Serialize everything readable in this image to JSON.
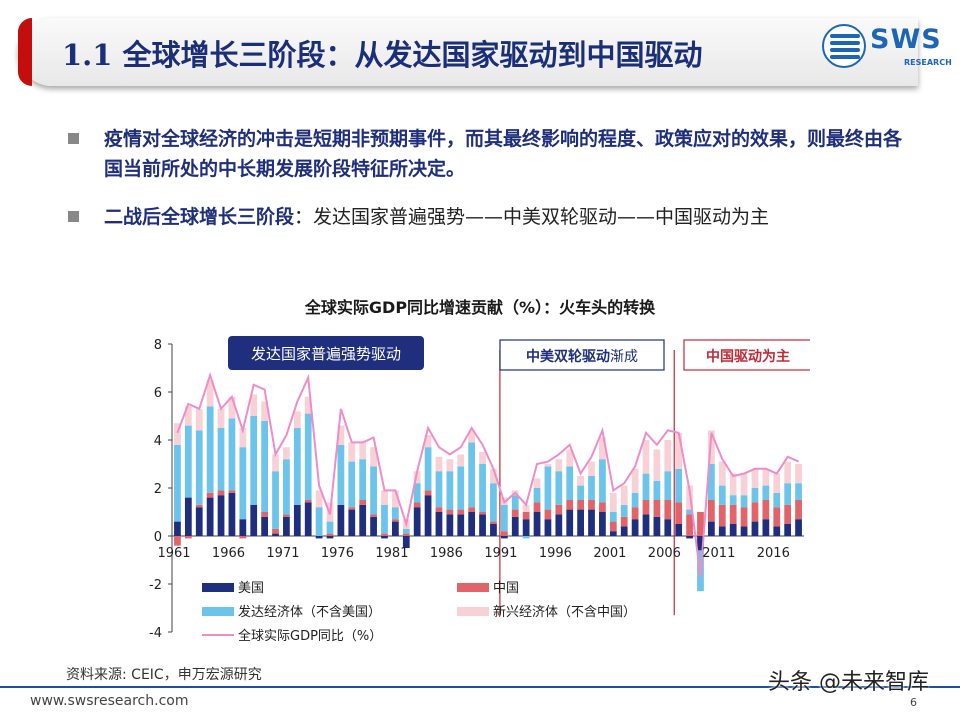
{
  "header": {
    "title": "1.1 全球增长三阶段：从发达国家驱动到中国驱动",
    "logo_text": "SWS",
    "logo_subtext": "RESEARCH"
  },
  "bullets": [
    {
      "bold": "疫情对全球经济的冲击是短期非预期事件，而其最终影响的程度、政策应对的效果，则最终由各国当前所处的中长期发展阶段特征所决定。",
      "rest": ""
    },
    {
      "bold": "二战后全球增长三阶段",
      "rest": "：发达国家普遍强势——中美双轮驱动——中国驱动为主"
    }
  ],
  "chart_data": {
    "type": "bar",
    "title": "全球实际GDP同比增速贡献（%）：火车头的转换",
    "stacked": true,
    "x": [
      1961,
      1962,
      1963,
      1964,
      1965,
      1966,
      1967,
      1968,
      1969,
      1970,
      1971,
      1972,
      1973,
      1974,
      1975,
      1976,
      1977,
      1978,
      1979,
      1980,
      1981,
      1982,
      1983,
      1984,
      1985,
      1986,
      1987,
      1988,
      1989,
      1990,
      1991,
      1992,
      1993,
      1994,
      1995,
      1996,
      1997,
      1998,
      1999,
      2000,
      2001,
      2002,
      2003,
      2004,
      2005,
      2006,
      2007,
      2008,
      2009,
      2010,
      2011,
      2012,
      2013,
      2014,
      2015,
      2016,
      2017,
      2018
    ],
    "x_tick_labels": [
      "1961",
      "1966",
      "1971",
      "1976",
      "1981",
      "1986",
      "1991",
      "1996",
      "2001",
      "2006",
      "2011",
      "2016"
    ],
    "ylim": [
      -4,
      8
    ],
    "y_ticks": [
      -4,
      -2,
      0,
      2,
      4,
      6,
      8
    ],
    "series": [
      {
        "name": "美国",
        "color": "#1f2f7d",
        "values": [
          0.6,
          1.6,
          1.2,
          1.6,
          1.7,
          1.8,
          0.7,
          1.3,
          0.8,
          0.1,
          0.8,
          1.3,
          1.4,
          -0.1,
          -0.1,
          1.3,
          1.1,
          1.3,
          0.8,
          -0.1,
          0.6,
          -0.5,
          1.2,
          1.7,
          1.0,
          0.9,
          0.9,
          1.0,
          0.9,
          0.5,
          -0.1,
          0.8,
          0.7,
          1.0,
          0.7,
          0.9,
          1.1,
          1.1,
          1.1,
          1.0,
          0.2,
          0.4,
          0.7,
          0.9,
          0.8,
          0.7,
          0.5,
          -0.1,
          -0.6,
          0.6,
          0.4,
          0.5,
          0.4,
          0.6,
          0.7,
          0.4,
          0.5,
          0.7
        ]
      },
      {
        "name": "中国",
        "color": "#e06469",
        "values": [
          -0.4,
          -0.1,
          0.1,
          0.2,
          0.2,
          0.1,
          -0.1,
          0.0,
          0.2,
          0.2,
          0.1,
          0.0,
          0.1,
          0.0,
          0.1,
          0.0,
          0.1,
          0.2,
          0.1,
          0.1,
          0.1,
          0.1,
          0.2,
          0.2,
          0.2,
          0.2,
          0.2,
          0.2,
          0.1,
          0.1,
          0.2,
          0.3,
          0.3,
          0.4,
          0.4,
          0.4,
          0.4,
          0.4,
          0.4,
          0.4,
          0.4,
          0.4,
          0.5,
          0.6,
          0.7,
          0.8,
          0.9,
          0.9,
          1.0,
          0.9,
          0.9,
          0.8,
          0.8,
          0.8,
          0.8,
          0.8,
          0.8,
          0.8
        ]
      },
      {
        "name": "发达经济体（不含美国）",
        "color": "#6cc4ea",
        "values": [
          3.2,
          3.0,
          3.1,
          3.6,
          2.6,
          3.0,
          3.0,
          3.7,
          3.8,
          2.4,
          2.3,
          3.2,
          3.6,
          1.2,
          0.5,
          2.5,
          1.9,
          1.7,
          2.0,
          1.2,
          0.5,
          0.2,
          0.8,
          1.8,
          1.5,
          1.6,
          1.8,
          2.7,
          2.0,
          1.6,
          1.1,
          0.6,
          -0.1,
          0.6,
          1.8,
          1.4,
          1.4,
          0.6,
          1.0,
          1.8,
          0.4,
          0.5,
          0.6,
          1.1,
          0.8,
          1.2,
          1.4,
          0.2,
          -1.7,
          1.5,
          0.8,
          0.4,
          0.5,
          0.6,
          0.6,
          0.6,
          0.9,
          0.7
        ]
      },
      {
        "name": "新兴经济体（不含中国）",
        "color": "#f8d1d6",
        "values": [
          0.9,
          0.8,
          0.9,
          1.1,
          0.8,
          0.9,
          0.8,
          0.9,
          0.8,
          0.7,
          0.5,
          0.7,
          0.7,
          0.7,
          0.8,
          0.8,
          0.8,
          0.7,
          0.8,
          0.6,
          0.7,
          0.4,
          0.5,
          0.5,
          0.6,
          0.5,
          0.5,
          0.5,
          0.5,
          0.6,
          0.3,
          0.2,
          0.3,
          0.4,
          0.1,
          0.5,
          0.7,
          0.4,
          0.6,
          0.9,
          0.8,
          0.8,
          1.0,
          1.4,
          1.3,
          1.3,
          1.5,
          1.0,
          0.0,
          1.4,
          1.0,
          0.9,
          0.9,
          0.8,
          0.7,
          0.8,
          0.9,
          0.8
        ]
      }
    ],
    "line": {
      "name": "全球实际GDP同比（%）",
      "color": "#f08cc8",
      "values": [
        4.3,
        5.5,
        5.3,
        6.7,
        5.3,
        5.8,
        4.4,
        6.3,
        6.1,
        3.4,
        4.2,
        5.6,
        6.6,
        2.1,
        0.9,
        5.3,
        3.9,
        3.9,
        4.1,
        1.9,
        1.9,
        0.5,
        2.7,
        4.5,
        3.7,
        3.4,
        3.7,
        4.5,
        3.8,
        2.8,
        1.4,
        1.8,
        1.3,
        3.0,
        3.1,
        3.4,
        3.8,
        2.6,
        3.3,
        4.4,
        1.9,
        2.2,
        2.9,
        4.3,
        3.8,
        4.4,
        4.3,
        1.9,
        -1.7,
        4.3,
        3.2,
        2.5,
        2.6,
        2.8,
        2.8,
        2.6,
        3.3,
        3.1
      ]
    },
    "legend": [
      "美国",
      "中国",
      "发达经济体（不含美国）",
      "新兴经济体（不含中国）",
      "全球实际GDP同比（%）"
    ],
    "legend_position": "bottom",
    "phases": [
      {
        "label": "发达国家普遍强势驱动",
        "style": "filled"
      },
      {
        "label": "中美双轮驱动渐成",
        "bold_part": "中美双轮驱动",
        "normal_part": "渐成",
        "style": "outlined-blue"
      },
      {
        "label": "中国驱动为主",
        "style": "outlined-red"
      }
    ],
    "phase_lines": [
      1991,
      2007
    ],
    "colors": {
      "phase_fill": "#1f2f7d",
      "phase_line_blue": "#c22a36",
      "phase_line_red": "#c22a36"
    }
  },
  "footer": {
    "source": "资料来源: CEIC，申万宏源研究",
    "url": "www.swsresearch.com",
    "page": "6",
    "watermark": "头条 @未来智库"
  }
}
